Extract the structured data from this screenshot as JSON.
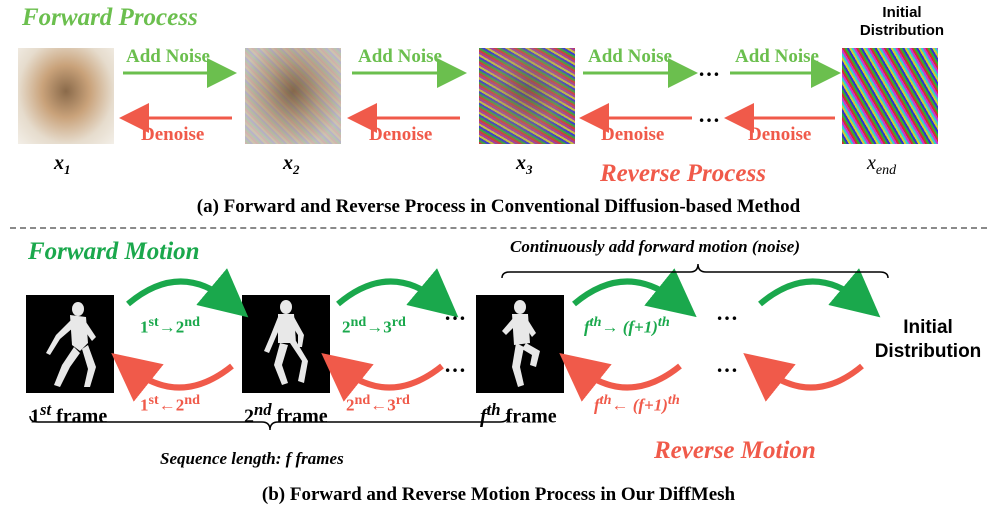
{
  "top": {
    "forward_title": "Forward Process",
    "reverse_title": "Reverse Process",
    "initial_distribution": [
      "Initial",
      "Distribution"
    ],
    "add_noise": "Add Noise",
    "denoise": "Denoise",
    "vars": [
      {
        "base": "x",
        "sub": "1"
      },
      {
        "base": "x",
        "sub": "2"
      },
      {
        "base": "x",
        "sub": "3"
      },
      {
        "base": "x",
        "sub": "end"
      }
    ],
    "ellipsis": "…",
    "caption": "(a) Forward and Reverse Process in Conventional Diffusion-based Method"
  },
  "bottom": {
    "forward_title": "Forward Motion",
    "reverse_title": "Reverse Motion",
    "brace_top_label": "Continuously add forward motion (noise)",
    "brace_bottom_label": "Sequence length: f frames",
    "initial_distribution": [
      "Initial",
      "Distribution"
    ],
    "ellipsis": "…",
    "frames": [
      {
        "num": "1",
        "sup": "st",
        "word": "frame"
      },
      {
        "num": "2",
        "sup": "nd",
        "word": "frame"
      },
      {
        "num": "f",
        "sup": "th",
        "word": "frame"
      }
    ],
    "forward_labels": [
      {
        "a": "1",
        "a_sup": "st",
        "arrow": "→",
        "b": "2",
        "b_sup": "nd"
      },
      {
        "a": "2",
        "a_sup": "nd",
        "arrow": "→",
        "b": "3",
        "b_sup": "rd"
      },
      {
        "a": "f",
        "a_sup": "th",
        "arrow": "→ ",
        "b": "(f+1)",
        "b_sup": "th"
      }
    ],
    "reverse_labels": [
      {
        "a": "1",
        "a_sup": "st",
        "arrow": "←",
        "b": "2",
        "b_sup": "nd"
      },
      {
        "a": "2",
        "a_sup": "nd",
        "arrow": "←",
        "b": "3",
        "b_sup": "rd"
      },
      {
        "a": "f",
        "a_sup": "th",
        "arrow": "← ",
        "b": "(f+1)",
        "b_sup": "th"
      }
    ],
    "caption": "(b) Forward and Reverse Motion Process in Our DiffMesh"
  },
  "colors": {
    "light_green": "#6bbf4e",
    "dark_green": "#1aa84c",
    "red": "#f05a4a"
  }
}
